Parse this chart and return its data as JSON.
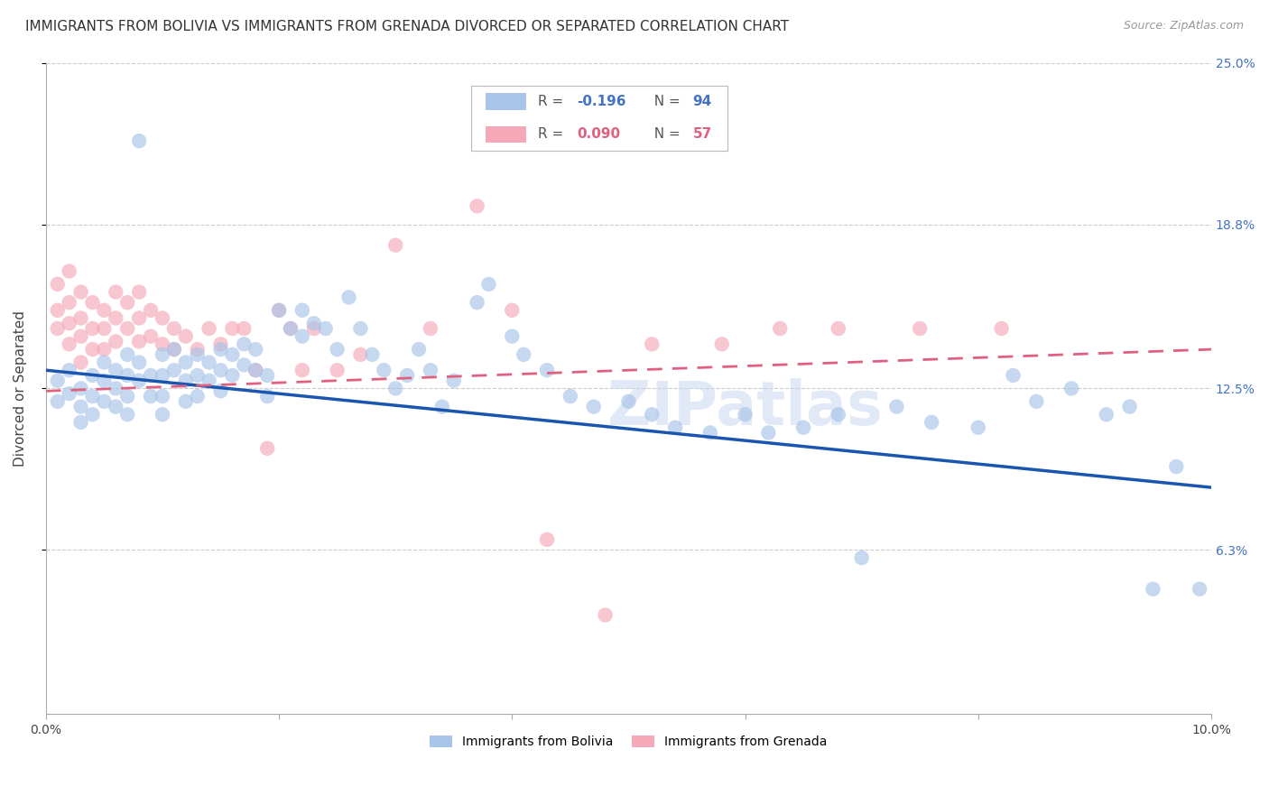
{
  "title": "IMMIGRANTS FROM BOLIVIA VS IMMIGRANTS FROM GRENADA DIVORCED OR SEPARATED CORRELATION CHART",
  "source": "Source: ZipAtlas.com",
  "ylabel": "Divorced or Separated",
  "xlim": [
    0.0,
    0.1
  ],
  "ylim": [
    0.0,
    0.25
  ],
  "ytick_positions": [
    0.063,
    0.125,
    0.188,
    0.25
  ],
  "ytick_labels": [
    "6.3%",
    "12.5%",
    "18.8%",
    "25.0%"
  ],
  "bolivia_color": "#a8c4e8",
  "grenada_color": "#f4a8b8",
  "bolivia_line_color": "#1a56b0",
  "grenada_line_color": "#e06080",
  "bolivia_R": -0.196,
  "bolivia_N": 94,
  "grenada_R": 0.09,
  "grenada_N": 57,
  "bolivia_line_x0": 0.0,
  "bolivia_line_y0": 0.132,
  "bolivia_line_x1": 0.1,
  "bolivia_line_y1": 0.087,
  "grenada_line_x0": 0.0,
  "grenada_line_y0": 0.124,
  "grenada_line_x1": 0.1,
  "grenada_line_y1": 0.14,
  "bolivia_scatter_x": [
    0.001,
    0.001,
    0.002,
    0.002,
    0.003,
    0.003,
    0.003,
    0.004,
    0.004,
    0.004,
    0.005,
    0.005,
    0.005,
    0.006,
    0.006,
    0.006,
    0.007,
    0.007,
    0.007,
    0.007,
    0.008,
    0.008,
    0.008,
    0.009,
    0.009,
    0.01,
    0.01,
    0.01,
    0.01,
    0.011,
    0.011,
    0.012,
    0.012,
    0.012,
    0.013,
    0.013,
    0.013,
    0.014,
    0.014,
    0.015,
    0.015,
    0.015,
    0.016,
    0.016,
    0.017,
    0.017,
    0.018,
    0.018,
    0.019,
    0.019,
    0.02,
    0.021,
    0.022,
    0.022,
    0.023,
    0.024,
    0.025,
    0.026,
    0.027,
    0.028,
    0.029,
    0.03,
    0.031,
    0.032,
    0.033,
    0.034,
    0.035,
    0.037,
    0.038,
    0.04,
    0.041,
    0.043,
    0.045,
    0.047,
    0.05,
    0.052,
    0.054,
    0.057,
    0.06,
    0.062,
    0.065,
    0.068,
    0.07,
    0.073,
    0.076,
    0.08,
    0.083,
    0.085,
    0.088,
    0.091,
    0.093,
    0.095,
    0.097,
    0.099
  ],
  "bolivia_scatter_y": [
    0.128,
    0.12,
    0.132,
    0.123,
    0.125,
    0.118,
    0.112,
    0.13,
    0.122,
    0.115,
    0.135,
    0.128,
    0.12,
    0.132,
    0.125,
    0.118,
    0.138,
    0.13,
    0.122,
    0.115,
    0.22,
    0.135,
    0.128,
    0.13,
    0.122,
    0.138,
    0.13,
    0.122,
    0.115,
    0.14,
    0.132,
    0.135,
    0.128,
    0.12,
    0.138,
    0.13,
    0.122,
    0.135,
    0.128,
    0.14,
    0.132,
    0.124,
    0.138,
    0.13,
    0.142,
    0.134,
    0.14,
    0.132,
    0.13,
    0.122,
    0.155,
    0.148,
    0.155,
    0.145,
    0.15,
    0.148,
    0.14,
    0.16,
    0.148,
    0.138,
    0.132,
    0.125,
    0.13,
    0.14,
    0.132,
    0.118,
    0.128,
    0.158,
    0.165,
    0.145,
    0.138,
    0.132,
    0.122,
    0.118,
    0.12,
    0.115,
    0.11,
    0.108,
    0.115,
    0.108,
    0.11,
    0.115,
    0.06,
    0.118,
    0.112,
    0.11,
    0.13,
    0.12,
    0.125,
    0.115,
    0.118,
    0.048,
    0.095,
    0.048
  ],
  "grenada_scatter_x": [
    0.001,
    0.001,
    0.001,
    0.002,
    0.002,
    0.002,
    0.002,
    0.003,
    0.003,
    0.003,
    0.003,
    0.004,
    0.004,
    0.004,
    0.005,
    0.005,
    0.005,
    0.006,
    0.006,
    0.006,
    0.007,
    0.007,
    0.008,
    0.008,
    0.008,
    0.009,
    0.009,
    0.01,
    0.01,
    0.011,
    0.011,
    0.012,
    0.013,
    0.014,
    0.015,
    0.016,
    0.017,
    0.018,
    0.019,
    0.02,
    0.021,
    0.022,
    0.023,
    0.025,
    0.027,
    0.03,
    0.033,
    0.037,
    0.04,
    0.043,
    0.048,
    0.052,
    0.058,
    0.063,
    0.068,
    0.075,
    0.082
  ],
  "grenada_scatter_y": [
    0.165,
    0.155,
    0.148,
    0.17,
    0.158,
    0.15,
    0.142,
    0.162,
    0.152,
    0.145,
    0.135,
    0.158,
    0.148,
    0.14,
    0.155,
    0.148,
    0.14,
    0.162,
    0.152,
    0.143,
    0.158,
    0.148,
    0.162,
    0.152,
    0.143,
    0.155,
    0.145,
    0.152,
    0.142,
    0.148,
    0.14,
    0.145,
    0.14,
    0.148,
    0.142,
    0.148,
    0.148,
    0.132,
    0.102,
    0.155,
    0.148,
    0.132,
    0.148,
    0.132,
    0.138,
    0.18,
    0.148,
    0.195,
    0.155,
    0.067,
    0.038,
    0.142,
    0.142,
    0.148,
    0.148,
    0.148,
    0.148
  ],
  "background_color": "#ffffff",
  "grid_color": "#cccccc",
  "watermark": "ZIPatlas",
  "title_fontsize": 11,
  "axis_label_fontsize": 11,
  "tick_fontsize": 10,
  "legend_fontsize": 11
}
